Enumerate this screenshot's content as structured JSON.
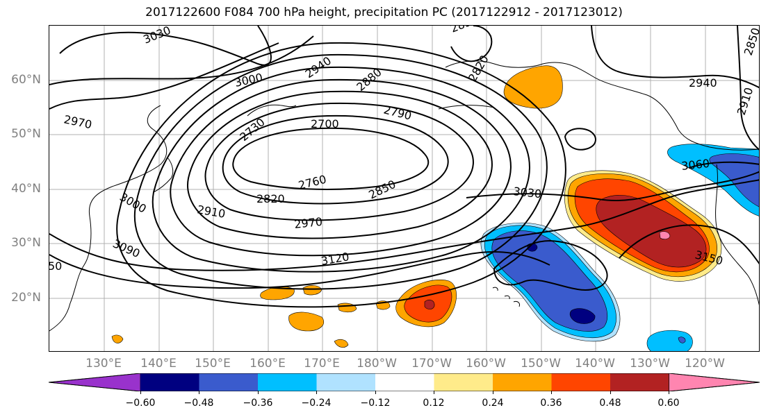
{
  "title": "2017122600 F084 700 hPa height, precipitation PC (2017122912 - 2017123012)",
  "latitudes": [
    "60°N",
    "50°N",
    "40°N",
    "30°N",
    "20°N"
  ],
  "longitudes": [
    "130°E",
    "140°E",
    "150°E",
    "160°E",
    "170°E",
    "180°W",
    "170°W",
    "160°W",
    "150°W",
    "140°W",
    "130°W",
    "120°W"
  ],
  "contour_labels": [
    "3030",
    "3000",
    "2970",
    "2940",
    "2880",
    "2850",
    "2820",
    "2790",
    "2730",
    "2700",
    "2760",
    "2820",
    "2850",
    "2910",
    "2970",
    "3000",
    "3090",
    "3120",
    "3030",
    "3060",
    "3150",
    "2940",
    "2910",
    "2850",
    "50"
  ],
  "colorbar": {
    "ticks": [
      "−0.60",
      "−0.48",
      "−0.36",
      "−0.24",
      "−0.12",
      "0.12",
      "0.24",
      "0.36",
      "0.48",
      "0.60"
    ],
    "colors": [
      "#9932cc",
      "#000080",
      "#3a5bcd",
      "#00bfff",
      "#b0e2ff",
      "#ffffff",
      "#ffeb8a",
      "#ffa500",
      "#ff4500",
      "#b22222",
      "#ff85b0"
    ]
  }
}
